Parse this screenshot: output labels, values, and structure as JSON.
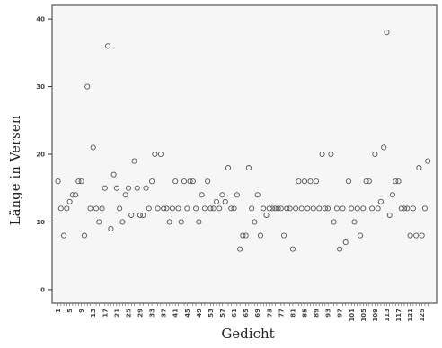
{
  "chart_data": {
    "type": "scatter",
    "xlabel": "Gedicht",
    "ylabel": "Länge in Versen",
    "ylim": [
      -2,
      42
    ],
    "y_ticks": [
      "0",
      "10",
      "20",
      "30",
      "40"
    ],
    "x_ticks": [
      "1",
      "5",
      "9",
      "13",
      "17",
      "21",
      "25",
      "29",
      "33",
      "37",
      "41",
      "45",
      "49",
      "53",
      "57",
      "61",
      "65",
      "69",
      "73",
      "77",
      "81",
      "85",
      "89",
      "93",
      "97",
      "101",
      "105",
      "109",
      "113",
      "117",
      "121",
      "125"
    ],
    "grid": false,
    "marker": "open-circle",
    "marker_color": "#555555",
    "frame_fill": "#f6f6f6",
    "x": [
      1,
      2,
      3,
      4,
      5,
      6,
      7,
      8,
      9,
      10,
      11,
      12,
      13,
      14,
      15,
      16,
      17,
      18,
      19,
      20,
      21,
      22,
      23,
      24,
      25,
      26,
      27,
      28,
      29,
      30,
      31,
      32,
      33,
      34,
      35,
      36,
      37,
      38,
      39,
      40,
      41,
      42,
      43,
      44,
      45,
      46,
      47,
      48,
      49,
      50,
      51,
      52,
      53,
      54,
      55,
      56,
      57,
      58,
      59,
      60,
      61,
      62,
      63,
      64,
      65,
      66,
      67,
      68,
      69,
      70,
      71,
      72,
      73,
      74,
      75,
      76,
      77,
      78,
      79,
      80,
      81,
      82,
      83,
      84,
      85,
      86,
      87,
      88,
      89,
      90,
      91,
      92,
      93,
      94,
      95,
      96,
      97,
      98,
      99,
      100,
      101,
      102,
      103,
      104,
      105,
      106,
      107,
      108,
      109,
      110,
      111,
      112,
      113,
      114,
      115,
      116,
      117,
      118,
      119,
      120,
      121,
      122,
      123,
      124,
      125,
      126,
      127
    ],
    "y": [
      16,
      12,
      8,
      12,
      13,
      14,
      14,
      16,
      16,
      8,
      30,
      12,
      21,
      12,
      10,
      12,
      15,
      36,
      9,
      17,
      15,
      12,
      10,
      14,
      15,
      11,
      19,
      15,
      11,
      11,
      15,
      12,
      16,
      20,
      12,
      20,
      12,
      12,
      10,
      12,
      16,
      12,
      10,
      16,
      12,
      16,
      16,
      12,
      10,
      14,
      12,
      16,
      12,
      12,
      13,
      12,
      14,
      13,
      18,
      12,
      12,
      14,
      6,
      8,
      8,
      18,
      12,
      10,
      14,
      8,
      12,
      11,
      12,
      12,
      12,
      12,
      12,
      8,
      12,
      12,
      6,
      12,
      16,
      12,
      16,
      12,
      16,
      12,
      16,
      12,
      20,
      12,
      12,
      20,
      10,
      12,
      6,
      12,
      7,
      16,
      12,
      10,
      12,
      8,
      12,
      16,
      16,
      12,
      20,
      12,
      13,
      21,
      38,
      11,
      14,
      16,
      16,
      12,
      12,
      12,
      8,
      12,
      8,
      18,
      8,
      12,
      19
    ]
  }
}
